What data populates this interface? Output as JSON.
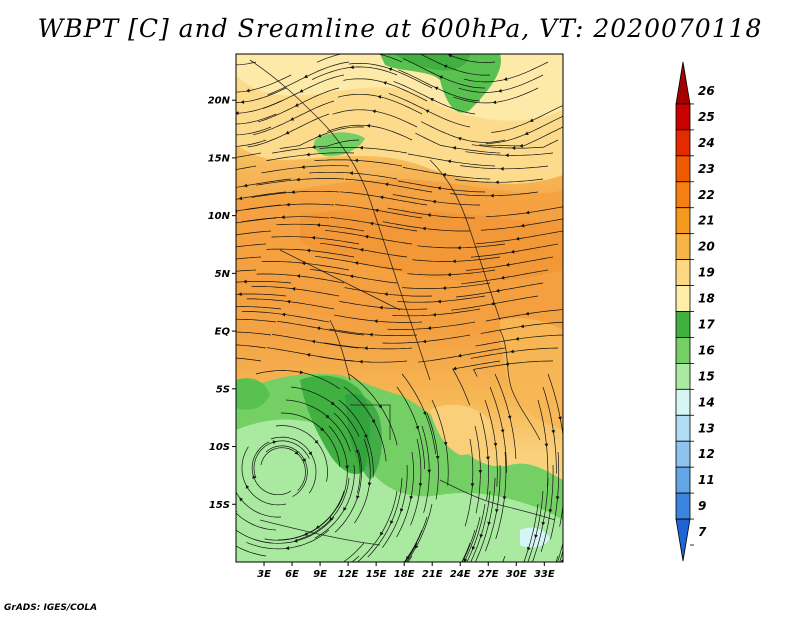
{
  "title": "WBPT [C] and Sreamline at 600hPa, VT: 2020070118",
  "footer": "GrADS: IGES/COLA",
  "map": {
    "lon_labels": [
      "3E",
      "6E",
      "9E",
      "12E",
      "15E",
      "18E",
      "21E",
      "24E",
      "27E",
      "30E",
      "33E"
    ],
    "lat_labels": [
      "20N",
      "15N",
      "10N",
      "5N",
      "EQ",
      "5S",
      "10S",
      "15S"
    ],
    "lon_range": [
      0,
      35
    ],
    "lat_range": [
      -20,
      24
    ]
  },
  "colorbar": {
    "labels": [
      "26",
      "25",
      "24",
      "23",
      "22",
      "21",
      "20",
      "19",
      "18",
      "17",
      "16",
      "15",
      "14",
      "13",
      "12",
      "11",
      "9",
      "7"
    ],
    "colors": [
      "#a50000",
      "#c80000",
      "#e62a00",
      "#f05a00",
      "#f57f10",
      "#f59a1e",
      "#f7b548",
      "#fcd884",
      "#fdefa8",
      "#40b040",
      "#74d064",
      "#aaeaa0",
      "#d6f6f6",
      "#b0dcf4",
      "#8cc4ee",
      "#62a6e6",
      "#3a86de",
      "#1e64d2"
    ]
  }
}
